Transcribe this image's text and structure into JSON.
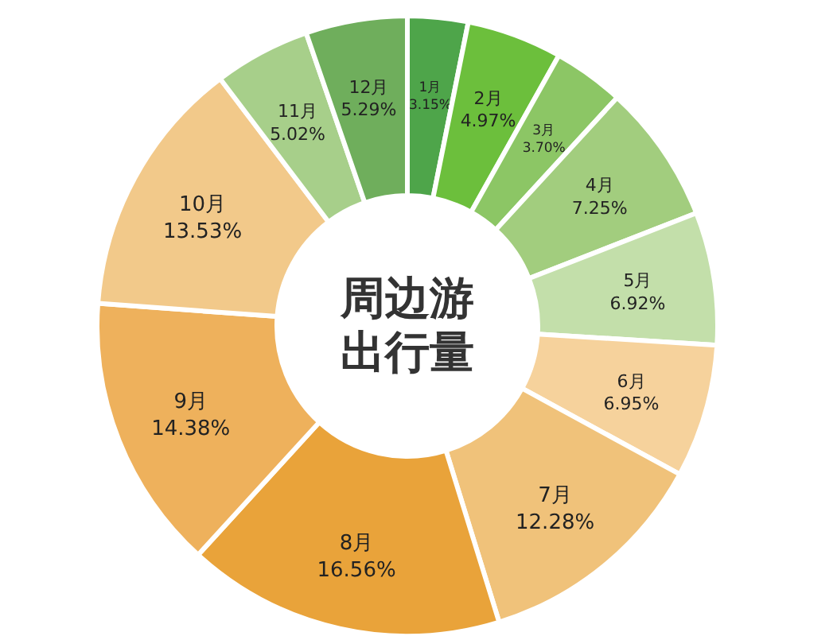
{
  "chart_data": {
    "type": "donut",
    "title": "周边游",
    "subtitle": "出行量",
    "categories": [
      "1月",
      "2月",
      "3月",
      "4月",
      "5月",
      "6月",
      "7月",
      "8月",
      "9月",
      "10月",
      "11月",
      "12月"
    ],
    "values": [
      3.15,
      4.97,
      3.7,
      7.25,
      6.92,
      6.95,
      12.28,
      16.56,
      14.38,
      13.53,
      5.02,
      5.29
    ],
    "value_labels": [
      "3.15%",
      "4.97%",
      "3.70%",
      "7.25%",
      "6.92%",
      "6.95%",
      "12.28%",
      "16.56%",
      "14.38%",
      "13.53%",
      "5.02%",
      "5.29%"
    ],
    "colors": [
      "#4ea54a",
      "#6cbf3c",
      "#8cc665",
      "#a2cd7e",
      "#c3dfaa",
      "#f6d29c",
      "#f0c27a",
      "#e9a33a",
      "#eeb15c",
      "#f2c98a",
      "#a7cf8a",
      "#6fae5c"
    ]
  }
}
